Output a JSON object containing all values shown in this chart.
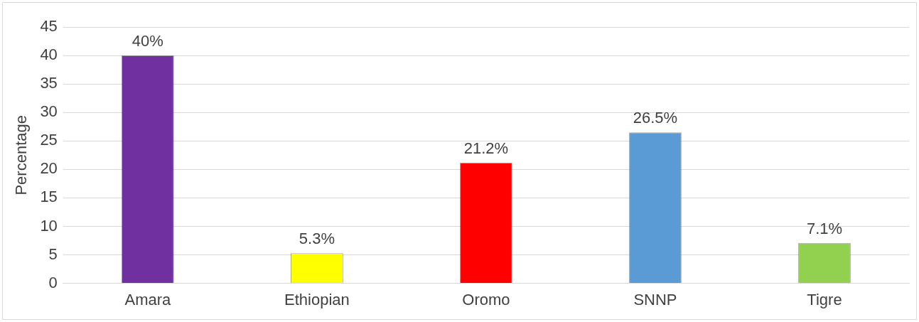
{
  "chart_data": {
    "type": "bar",
    "ylabel": "Percentage",
    "categories": [
      "Amara",
      "Ethiopian",
      "Oromo",
      "SNNP",
      "Tigre"
    ],
    "values": [
      40,
      5.3,
      21.2,
      26.5,
      7.1
    ],
    "colors": [
      "#7030a0",
      "#ffff00",
      "#ff0000",
      "#5b9bd5",
      "#92d050"
    ],
    "value_labels": [
      "40%",
      "5.3%",
      "21.2%",
      "26.5%",
      "7.1%"
    ],
    "ylim": [
      0,
      45
    ],
    "yticks": [
      0,
      5,
      10,
      15,
      20,
      25,
      30,
      35,
      40,
      45
    ],
    "grid": "y",
    "legend": false
  }
}
